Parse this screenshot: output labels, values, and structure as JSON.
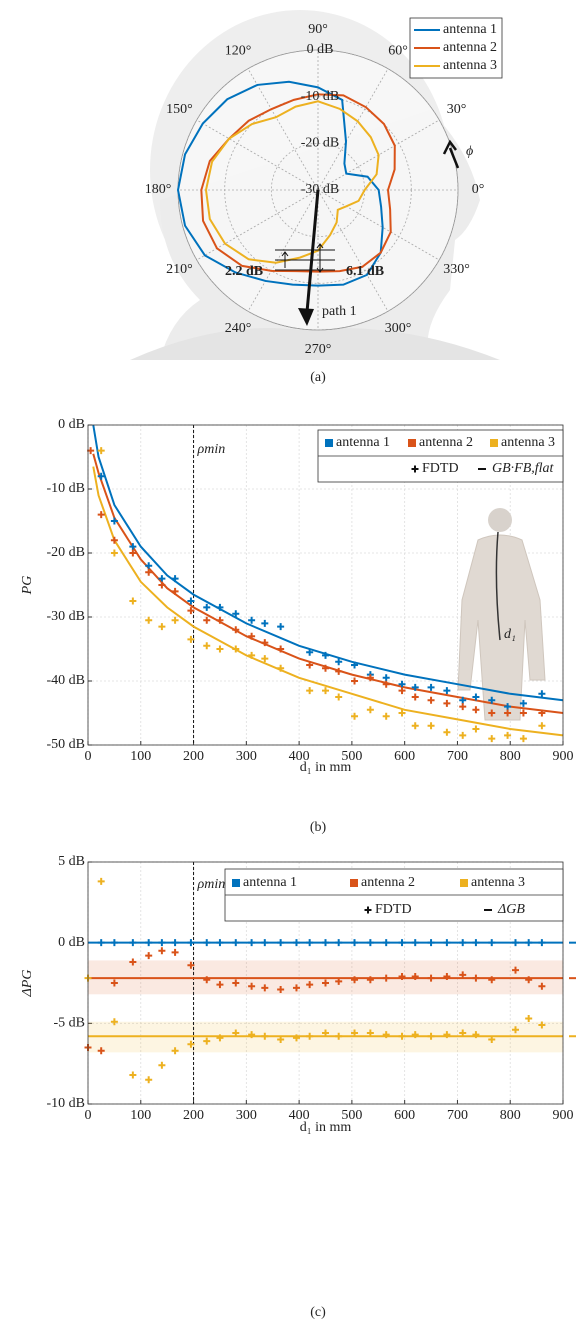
{
  "chart_data": [
    {
      "type": "polar",
      "caption": "(a)",
      "theta": [
        0,
        15,
        30,
        45,
        60,
        75,
        90,
        105,
        120,
        135,
        150,
        165,
        180,
        195,
        210,
        225,
        240,
        255,
        270,
        285,
        300,
        315,
        330,
        345
      ],
      "theta_ticks": [
        {
          "value": 0,
          "label": "0°"
        },
        {
          "value": 30,
          "label": "30°"
        },
        {
          "value": 60,
          "label": "60°"
        },
        {
          "value": 90,
          "label": "90°"
        },
        {
          "value": 120,
          "label": "120°"
        },
        {
          "value": 150,
          "label": "150°"
        },
        {
          "value": 180,
          "label": "180°"
        },
        {
          "value": 210,
          "label": "210°"
        },
        {
          "value": 240,
          "label": "240°"
        },
        {
          "value": 270,
          "label": "270°"
        },
        {
          "value": 300,
          "label": "300°"
        },
        {
          "value": 330,
          "label": "330°"
        }
      ],
      "rlim": [
        -30,
        0
      ],
      "rticks": [
        {
          "value": 0,
          "label": "0 dB"
        },
        {
          "value": -10,
          "label": "-10 dB"
        },
        {
          "value": -20,
          "label": "-20 dB"
        },
        {
          "value": -30,
          "label": "-30 dB"
        }
      ],
      "series": [
        {
          "name": "antenna 1",
          "color": "#0072bd",
          "values": [
            -17,
            -19,
            -23,
            -22,
            -18,
            -10,
            -8,
            -6,
            -4,
            -2.5,
            -1.5,
            -0.5,
            0,
            -0.5,
            -2,
            -5,
            -7.5,
            -9,
            -9.5,
            -9,
            -9,
            -11,
            -14,
            -16
          ]
        },
        {
          "name": "antenna 2",
          "color": "#d95319",
          "values": [
            -15,
            -13,
            -11,
            -10,
            -9.5,
            -9,
            -9.5,
            -10,
            -10,
            -9,
            -8,
            -6,
            -5,
            -4.5,
            -5,
            -7,
            -10,
            -12,
            -12.5,
            -12,
            -11,
            -11,
            -12,
            -14
          ]
        },
        {
          "name": "antenna 3",
          "color": "#edb120",
          "values": [
            -20,
            -17,
            -15,
            -14,
            -13,
            -12,
            -11,
            -11.5,
            -12,
            -10,
            -8,
            -6.5,
            -6,
            -6,
            -7,
            -9,
            -12,
            -15,
            -17,
            -20,
            -22,
            -24,
            -23,
            -21
          ]
        }
      ],
      "annotations": [
        {
          "text": "2.2 dB",
          "color": "#d95319"
        },
        {
          "text": "6.1 dB",
          "color": "#edb120"
        },
        {
          "text": "path 1",
          "color": "#000000"
        },
        {
          "text": "ϕ",
          "color": "#000000"
        }
      ]
    },
    {
      "type": "line",
      "caption": "(b)",
      "xlabel": "d₁ in mm",
      "ylabel": "PG",
      "xlim": [
        0,
        900
      ],
      "xticks": [
        0,
        100,
        200,
        300,
        400,
        500,
        600,
        700,
        800,
        900
      ],
      "ylim": [
        -50,
        0
      ],
      "yticks": [
        {
          "value": 0,
          "label": "0 dB"
        },
        {
          "value": -10,
          "label": "-10 dB"
        },
        {
          "value": -20,
          "label": "-20 dB"
        },
        {
          "value": -30,
          "label": "-30 dB"
        },
        {
          "value": -40,
          "label": "-40 dB"
        },
        {
          "value": -50,
          "label": "-50 dB"
        }
      ],
      "grid": true,
      "vline": {
        "value": 200,
        "label": "ρmin"
      },
      "inset_label": "d₁",
      "legend_labels": [
        "FDTD",
        "GB·FB,flat"
      ],
      "x": [
        5,
        25,
        50,
        85,
        115,
        140,
        165,
        195,
        225,
        250,
        280,
        310,
        335,
        365,
        420,
        450,
        475,
        505,
        535,
        565,
        595,
        620,
        650,
        680,
        710,
        735,
        765,
        795,
        825,
        860
      ],
      "fit_x": [
        10,
        20,
        50,
        100,
        150,
        200,
        300,
        400,
        500,
        600,
        700,
        800,
        900
      ],
      "series": [
        {
          "name": "antenna 1",
          "color": "#0072bd",
          "fdtd": [
            null,
            -8,
            -15,
            -19,
            -22,
            -24,
            -24,
            -27.5,
            -28.5,
            -28.5,
            -29.5,
            -30.5,
            -31,
            -31.5,
            -35.5,
            -36,
            -37,
            -37.5,
            -39,
            -39.5,
            -40.5,
            -41,
            -41,
            -41.5,
            -43,
            -42.5,
            -43,
            -44,
            -43.5,
            -42
          ],
          "fit": [
            0,
            -5,
            -12.5,
            -19,
            -23.5,
            -26.5,
            -31,
            -34.5,
            -37,
            -39,
            -40.5,
            -42,
            -43
          ]
        },
        {
          "name": "antenna 2",
          "color": "#d95319",
          "fdtd": [
            -4,
            -14,
            -18,
            -20,
            -23,
            -25,
            -26,
            -29,
            -30.5,
            -30.5,
            -32,
            -33,
            -34,
            -35,
            -37.5,
            -38,
            -38.5,
            -40,
            -39.5,
            -40.5,
            -41.5,
            -42.5,
            -43,
            -43.5,
            -44,
            -44.5,
            -45,
            -45,
            -45,
            -45
          ],
          "fit": [
            -4.5,
            -7.5,
            -14.5,
            -21,
            -25.5,
            -28.5,
            -33,
            -36.5,
            -39,
            -41,
            -42.5,
            -44,
            -45
          ]
        },
        {
          "name": "antenna 3",
          "color": "#edb120",
          "fdtd": [
            null,
            -4,
            -20,
            -27.5,
            -30.5,
            -31.5,
            -30.5,
            -33.5,
            -34.5,
            -35,
            -35,
            -36,
            -36.5,
            -38,
            -41.5,
            -41.5,
            -42.5,
            -45.5,
            -44.5,
            -45.5,
            -45,
            -47,
            -47,
            -48,
            -48.5,
            -47.5,
            -49,
            -48.5,
            -49,
            -47
          ],
          "fit": [
            -6.5,
            -11,
            -18,
            -24.5,
            -28.5,
            -31.5,
            -36,
            -39.5,
            -42,
            -44.5,
            -46,
            -47.5,
            -48.5
          ]
        }
      ]
    },
    {
      "type": "line",
      "caption": "(c)",
      "xlabel": "d₁ in mm",
      "ylabel": "ΔPG",
      "xlim": [
        0,
        900
      ],
      "xticks": [
        0,
        100,
        200,
        300,
        400,
        500,
        600,
        700,
        800,
        900
      ],
      "ylim": [
        -10,
        5
      ],
      "yticks": [
        {
          "value": 5,
          "label": "5 dB"
        },
        {
          "value": 0,
          "label": "0 dB"
        },
        {
          "value": -5,
          "label": "-5 dB"
        },
        {
          "value": -10,
          "label": "-10 dB"
        }
      ],
      "grid": true,
      "vline": {
        "value": 200,
        "label": "ρmin"
      },
      "legend_labels": [
        "FDTD",
        "ΔGB"
      ],
      "x": [
        0,
        25,
        50,
        85,
        115,
        140,
        165,
        195,
        225,
        250,
        280,
        310,
        335,
        365,
        395,
        420,
        450,
        475,
        505,
        535,
        565,
        595,
        620,
        650,
        680,
        710,
        735,
        765,
        810,
        835,
        860
      ],
      "series": [
        {
          "name": "antenna 1",
          "color": "#0072bd",
          "level": 0,
          "fdtd": [
            null,
            0,
            0,
            0,
            0,
            0,
            0,
            0,
            0,
            0,
            0,
            0,
            0,
            0,
            0,
            0,
            0,
            0,
            0,
            0,
            0,
            0,
            0,
            0,
            0,
            0,
            0,
            0,
            0,
            0,
            0
          ]
        },
        {
          "name": "antenna 2",
          "color": "#d95319",
          "level": -2.2,
          "band": [
            -3.2,
            -1.1
          ],
          "fdtd": [
            -6.5,
            -6.7,
            -2.5,
            -1.2,
            -0.8,
            -0.5,
            -0.6,
            -1.4,
            -2.3,
            -2.6,
            -2.5,
            -2.7,
            -2.8,
            -2.9,
            -2.8,
            -2.6,
            -2.5,
            -2.4,
            -2.3,
            -2.3,
            -2.2,
            -2.1,
            -2.1,
            -2.2,
            -2.1,
            -2,
            -2.2,
            -2.3,
            -1.7,
            -2.3,
            -2.7
          ]
        },
        {
          "name": "antenna 3",
          "color": "#edb120",
          "level": -5.8,
          "band": [
            -6.8,
            -4.9
          ],
          "fdtd": [
            -2.2,
            3.8,
            -4.9,
            -8.2,
            -8.5,
            -7.6,
            -6.7,
            -6.3,
            -6.1,
            -5.9,
            -5.6,
            -5.7,
            -5.8,
            -6,
            -5.9,
            -5.8,
            -5.6,
            -5.8,
            -5.6,
            -5.6,
            -5.7,
            -5.8,
            -5.7,
            -5.8,
            -5.7,
            -5.6,
            -5.7,
            -6,
            -5.4,
            -4.7,
            -5.1
          ]
        }
      ]
    }
  ]
}
